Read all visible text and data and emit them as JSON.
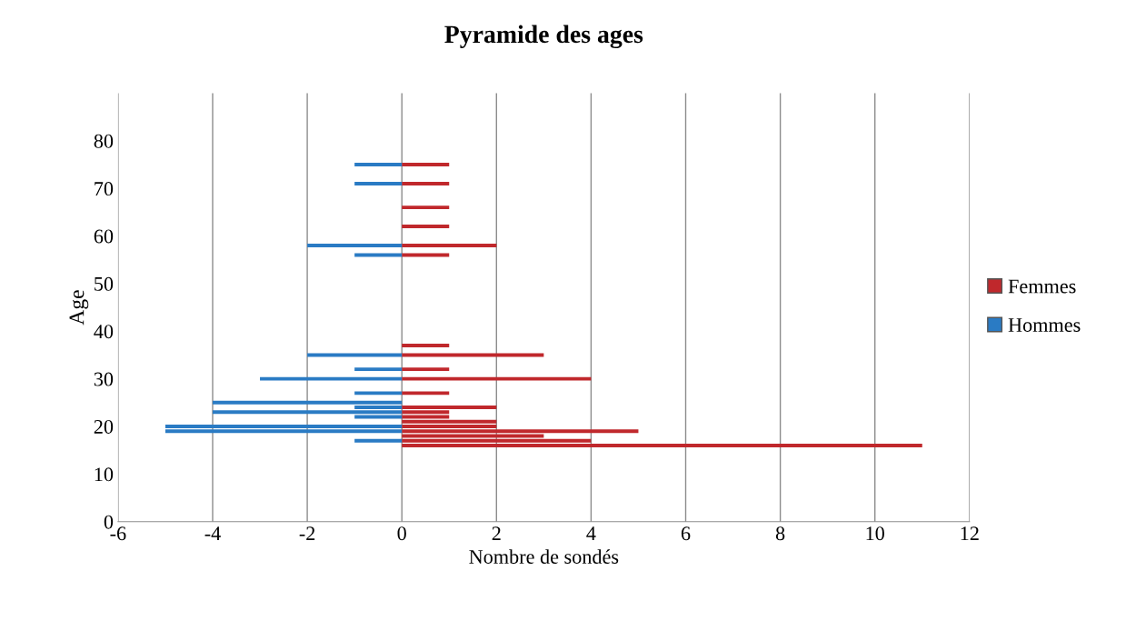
{
  "chart_data": {
    "type": "bar",
    "orientation": "horizontal",
    "title": "Pyramide des ages",
    "xlabel": "Nombre de sondés",
    "ylabel": "Age",
    "x": [
      16,
      17,
      18,
      19,
      20,
      21,
      22,
      23,
      24,
      25,
      27,
      30,
      32,
      35,
      37,
      56,
      58,
      62,
      66,
      71,
      75
    ],
    "series": [
      {
        "name": "Femmes",
        "color": "#c0282c",
        "values": [
          11,
          4,
          3,
          5,
          2,
          2,
          1,
          1,
          2,
          null,
          1,
          4,
          1,
          3,
          1,
          1,
          2,
          1,
          1,
          1,
          1
        ]
      },
      {
        "name": "Hommes",
        "color": "#2a7bc4",
        "values": [
          null,
          -1,
          null,
          -5,
          -5,
          null,
          -1,
          -4,
          -1,
          -4,
          -1,
          -3,
          -1,
          -2,
          null,
          -1,
          -2,
          null,
          null,
          -1,
          -1
        ]
      }
    ],
    "xlim": [
      -6,
      12
    ],
    "xticks": [
      -6,
      -4,
      -2,
      0,
      2,
      4,
      6,
      8,
      10,
      12
    ],
    "ylim": [
      0,
      90
    ],
    "yticks": [
      0,
      10,
      20,
      30,
      40,
      50,
      60,
      70,
      80
    ],
    "grid": "x",
    "legend": "right",
    "stacked": true
  }
}
